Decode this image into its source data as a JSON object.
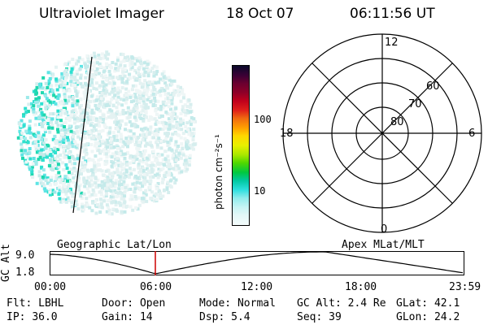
{
  "header": {
    "title": "Ultraviolet Imager",
    "date": "18 Oct 07",
    "time": "06:11:56 UT"
  },
  "colorbar": {
    "unit_label": "photon cm⁻²s⁻¹",
    "ticks": [
      "100",
      "10"
    ],
    "colors": [
      "#0a0a2a",
      "#3a0035",
      "#6a0030",
      "#900028",
      "#c0001c",
      "#e0201a",
      "#f06a10",
      "#ffa000",
      "#ffd800",
      "#e8f000",
      "#a8e800",
      "#50d800",
      "#00c840",
      "#00c8a0",
      "#30e0e0",
      "#90ecec",
      "#c8f4f4",
      "#e4f8f8",
      "#f4fcfc"
    ]
  },
  "polar_plot": {
    "mlt_labels": {
      "top": "12",
      "left": "18",
      "right": "6",
      "bottom": "0"
    },
    "lat_labels": [
      "80",
      "70",
      "60"
    ]
  },
  "orbit": {
    "left_title": "Geographic Lat/Lon",
    "right_title": "Apex MLat/MLT",
    "yaxis_label": "GC Alt",
    "y_ticks": [
      "9.0",
      "1.8"
    ],
    "x_ticks": [
      "00:00",
      "06:00",
      "12:00",
      "18:00",
      "23:59"
    ],
    "current_time_marker_color": "#cc0000"
  },
  "info": {
    "row1": [
      {
        "label": "Flt:",
        "value": "LBHL"
      },
      {
        "label": "Door:",
        "value": "Open"
      },
      {
        "label": "Mode:",
        "value": "Normal"
      },
      {
        "label": "GC Alt:",
        "value": "2.4 Re"
      },
      {
        "label": "GLat:",
        "value": "42.1"
      }
    ],
    "row2": [
      {
        "label": "IP:",
        "value": "36.0"
      },
      {
        "label": "Gain:",
        "value": "14"
      },
      {
        "label": "Dsp:",
        "value": "5.4"
      },
      {
        "label": "Seq:",
        "value": "39"
      },
      {
        "label": "GLon:",
        "value": "24.2"
      }
    ]
  }
}
